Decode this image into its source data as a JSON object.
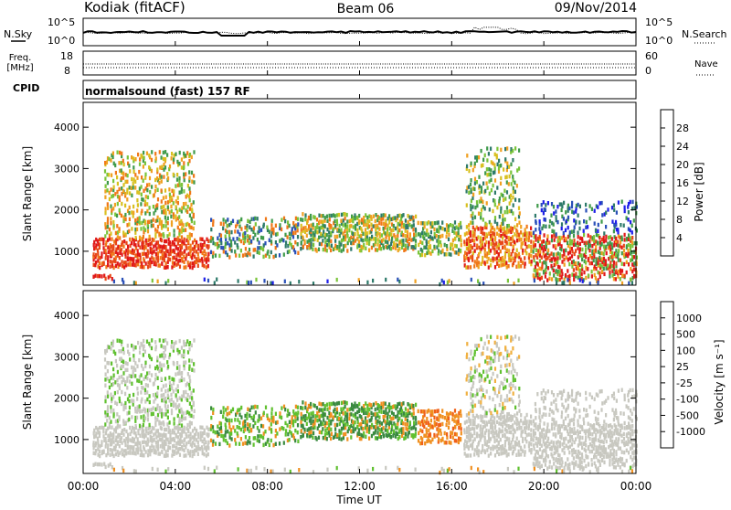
{
  "header": {
    "station": "Kodiak (fitACF)",
    "beam": "Beam 06",
    "date": "09/Nov/2014"
  },
  "top_panels": {
    "nsky_label": "N.Sky",
    "nsky_ticks": [
      "10^5",
      "10^0"
    ],
    "nsearch_label": "N.Search",
    "nsearch_ticks": [
      "10^5",
      "10^0"
    ],
    "freq_label_1": "Freq.",
    "freq_label_2": "[MHz]",
    "freq_ticks": [
      "18",
      "8"
    ],
    "nave_label": "Nave",
    "nave_ticks": [
      "60",
      "0"
    ],
    "cpid_label": "CPID",
    "cpid_value": "normalsound (fast) 157 RF"
  },
  "colors": {
    "power_scale": [
      "#1e1ee8",
      "#2a50b8",
      "#2e7a6a",
      "#3f9a4a",
      "#7ac43a",
      "#d8c020",
      "#f0a020",
      "#f07818",
      "#e84818",
      "#e01818"
    ],
    "velocity_scale": [
      "#e81818",
      "#f06018",
      "#f09020",
      "#f0b040",
      "#c8c8c0",
      "#c8c8c0",
      "#60c030",
      "#3a8a40",
      "#2a60a0",
      "#1a30c8"
    ]
  },
  "chart_data": [
    {
      "type": "heatmap",
      "panel": "power",
      "ylabel": "Slant Range [km]",
      "xlabel": "Time UT",
      "x_ticks": [
        "00:00",
        "04:00",
        "08:00",
        "12:00",
        "16:00",
        "20:00",
        "00:00"
      ],
      "y_ticks": [
        "1000",
        "2000",
        "3000",
        "4000"
      ],
      "ylim": [
        180,
        4600
      ],
      "colorbar_label": "Power [dB]",
      "colorbar_ticks": [
        "4",
        "8",
        "12",
        "16",
        "20",
        "24",
        "28"
      ]
    },
    {
      "type": "heatmap",
      "panel": "velocity",
      "ylabel": "Slant Range [km]",
      "xlabel": "Time UT",
      "x_ticks": [
        "00:00",
        "04:00",
        "08:00",
        "12:00",
        "16:00",
        "20:00",
        "00:00"
      ],
      "y_ticks": [
        "1000",
        "2000",
        "3000",
        "4000"
      ],
      "ylim": [
        180,
        4600
      ],
      "colorbar_label": "Velocity [m s⁻¹]",
      "colorbar_ticks": [
        "-1000",
        "-500",
        "-100",
        "-25",
        "25",
        "100",
        "500",
        "1000"
      ]
    }
  ]
}
